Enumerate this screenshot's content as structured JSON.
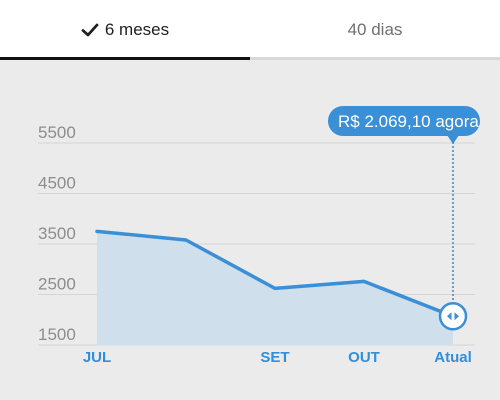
{
  "tabs": [
    {
      "label": "6 meses",
      "selected": true,
      "icon": "check-icon"
    },
    {
      "label": "40 dias",
      "selected": false
    }
  ],
  "colors": {
    "accent": "#3a8fd6",
    "fill": "#cfdfeb",
    "grid": "#d6d6d6",
    "tick_text": "#8d8d8d",
    "x_label": "#2f8fdc"
  },
  "chart_data": {
    "type": "area",
    "yticks": [
      "5500",
      "4500",
      "3500",
      "2500",
      "1500"
    ],
    "ytick_values": [
      5500,
      4500,
      3500,
      2500,
      1500
    ],
    "ylim": [
      1500,
      5500
    ],
    "xticks": [
      "JUL",
      "SET",
      "OUT",
      "Atual"
    ],
    "xtick_positions": [
      0,
      2,
      3,
      4
    ],
    "values": [
      3750,
      3580,
      2620,
      2760,
      2069.1
    ],
    "callout": {
      "label": "R$ 2.069,10 agora",
      "index": 4
    },
    "handle_icon": "drag-handle-icon",
    "grid": true
  }
}
